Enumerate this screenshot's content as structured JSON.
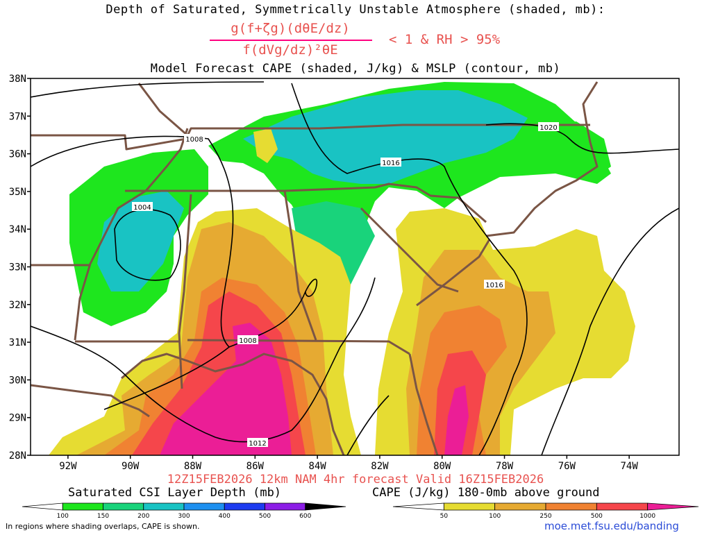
{
  "titles": {
    "line1": "Depth of Saturated, Symmetrically Unstable Atmosphere (shaded, mb):",
    "numerator": "g(f+ζg)(dθE/dz)",
    "denominator": "f(dVg/dz)²θE",
    "condition": "< 1 & RH > 95%",
    "line_model": "Model Forecast CAPE (shaded, J/kg) & MSLP (contour, mb)",
    "valid": "12Z15FEB2026 12km NAM 4hr forecast Valid 16Z15FEB2026"
  },
  "map": {
    "lat_labels": [
      "38N",
      "37N",
      "36N",
      "35N",
      "34N",
      "33N",
      "32N",
      "31N",
      "30N",
      "29N",
      "28N"
    ],
    "lon_labels": [
      "92W",
      "90W",
      "88W",
      "86W",
      "84W",
      "82W",
      "80W",
      "78W",
      "76W",
      "74W"
    ],
    "lat_range": [
      28,
      38
    ],
    "lon_range": [
      -93.2,
      -72.4
    ],
    "mslp_labels": [
      "1008",
      "1016",
      "1020",
      "1004",
      "1016",
      "1008",
      "1012"
    ]
  },
  "legend_csi": {
    "title": "Saturated CSI Layer Depth (mb)",
    "ticks": [
      "100",
      "150",
      "200",
      "300",
      "400",
      "500",
      "600"
    ],
    "colors": [
      "#ffffff",
      "#1ee61e",
      "#19d37b",
      "#19c3c3",
      "#1e90f0",
      "#1e3cf0",
      "#8c1ee6",
      "#000000"
    ]
  },
  "legend_cape": {
    "title": "CAPE (J/kg) 180-0mb above ground",
    "ticks": [
      "50",
      "100",
      "250",
      "500",
      "1000"
    ],
    "colors": [
      "#ffffff",
      "#e6dc32",
      "#e6aa32",
      "#f08232",
      "#f5464b",
      "#eb1e96"
    ]
  },
  "footer": {
    "note": "In regions where shading overlaps, CAPE is shown.",
    "url": "moe.met.fsu.edu/banding"
  }
}
